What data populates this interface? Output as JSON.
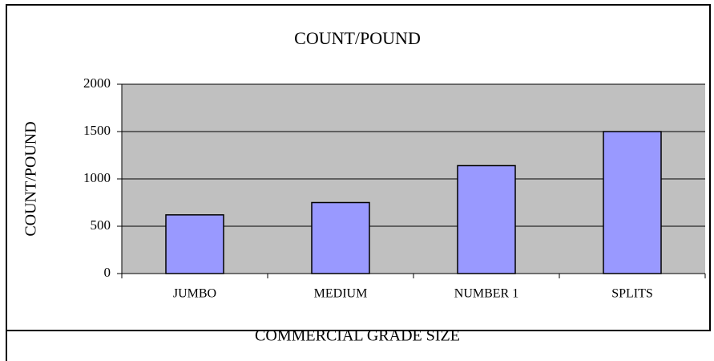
{
  "chart_data": {
    "type": "bar",
    "title": "COUNT/POUND",
    "x_label": "COMMERCIAL GRADE SIZE",
    "y_label": "COUNT/POUND",
    "categories": [
      "JUMBO",
      "MEDIUM",
      "NUMBER 1",
      "SPLITS"
    ],
    "values": [
      620,
      750,
      1140,
      1500
    ],
    "color": "#9999ff",
    "ylim": [
      0,
      2000
    ],
    "yticks": [
      0,
      500,
      1000,
      1500,
      2000
    ],
    "grid": true
  }
}
